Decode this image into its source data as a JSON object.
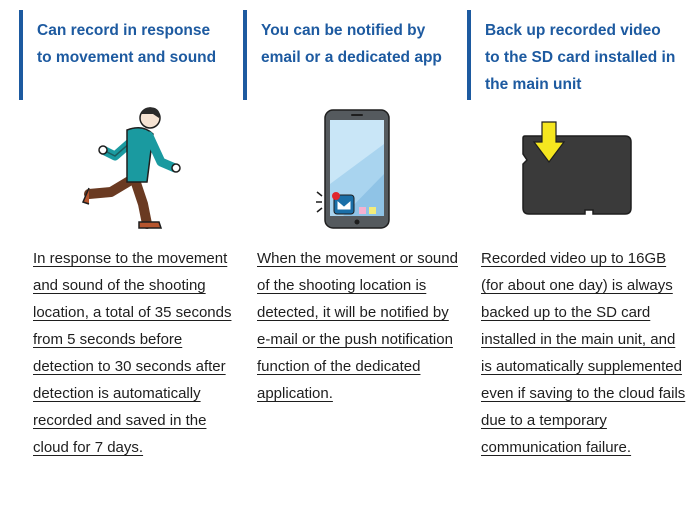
{
  "features": [
    {
      "heading": "Can record in response to movement and sound",
      "icon": "running-man-illustration",
      "description": "In response to the movement and sound of the shooting location, a total of 35 seconds from 5 seconds before detection to 30 seconds after detection is automatically recorded and saved in the cloud for 7 days."
    },
    {
      "heading": "You can be notified by email or a dedicated app",
      "icon": "smartphone-mail-notification-illustration",
      "description": "When the movement or sound of the shooting location is detected, it will be notified by e-mail or the push notification function of the dedicated application."
    },
    {
      "heading": "Back up recorded video to the SD card installed in the main unit",
      "icon": "sd-card-insert-illustration",
      "description": "Recorded video up to 16GB (for about one day) is always backed up to the SD card installed in the main unit, and is automatically supplemented even if saving to the cloud fails due to a temporary communication failure."
    }
  ],
  "colors": {
    "accent": "#1d5aa0",
    "text": "#1e1e1e",
    "arrow": "#f5e61f"
  }
}
